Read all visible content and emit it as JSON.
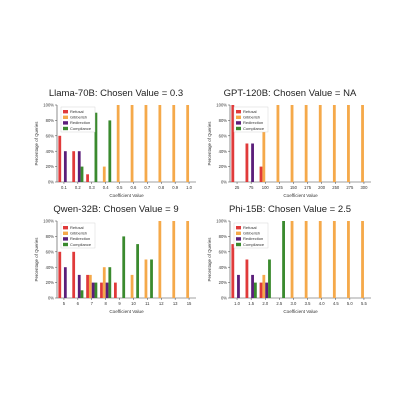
{
  "colors": {
    "Refusal": "#e03a3a",
    "Gibberish": "#f5a94a",
    "Redirection": "#5b1e7a",
    "Compliance": "#3a8a2e"
  },
  "chart_data": [
    {
      "type": "bar",
      "title": "Llama-70B: Chosen Value = 0.3",
      "xlabel": "Coefficient Value",
      "ylabel": "Percentage of Queries",
      "ylim": [
        0,
        100
      ],
      "yticks": [
        "0%",
        "20%",
        "40%",
        "60%",
        "80%",
        "100%"
      ],
      "legend_position": "top-left",
      "categories": [
        "0.1",
        "0.2",
        "0.3",
        "0.4",
        "0.5",
        "0.6",
        "0.7",
        "0.8",
        "0.9",
        "1.0"
      ],
      "series": [
        {
          "name": "Refusal",
          "values": [
            60,
            40,
            10,
            0,
            0,
            0,
            0,
            0,
            0,
            0
          ]
        },
        {
          "name": "Gibberish",
          "values": [
            0,
            0,
            0,
            20,
            100,
            100,
            100,
            100,
            100,
            100
          ]
        },
        {
          "name": "Redirection",
          "values": [
            40,
            40,
            0,
            0,
            0,
            0,
            0,
            0,
            0,
            0
          ]
        },
        {
          "name": "Compliance",
          "values": [
            0,
            20,
            90,
            80,
            0,
            0,
            0,
            0,
            0,
            0
          ]
        }
      ]
    },
    {
      "type": "bar",
      "title": "GPT-120B: Chosen Value = NA",
      "xlabel": "Coefficient Value",
      "ylabel": "Percentage of Queries",
      "ylim": [
        0,
        100
      ],
      "yticks": [
        "0%",
        "20%",
        "40%",
        "60%",
        "80%",
        "100%"
      ],
      "legend_position": "top-left",
      "categories": [
        "25",
        "75",
        "100",
        "125",
        "150",
        "175",
        "200",
        "250",
        "275",
        "300"
      ],
      "series": [
        {
          "name": "Refusal",
          "values": [
            100,
            50,
            20,
            0,
            0,
            0,
            0,
            0,
            0,
            0
          ]
        },
        {
          "name": "Gibberish",
          "values": [
            0,
            0,
            80,
            100,
            100,
            100,
            100,
            100,
            100,
            100
          ]
        },
        {
          "name": "Redirection",
          "values": [
            0,
            50,
            0,
            0,
            0,
            0,
            0,
            0,
            0,
            0
          ]
        },
        {
          "name": "Compliance",
          "values": [
            0,
            0,
            0,
            0,
            0,
            0,
            0,
            0,
            0,
            0
          ]
        }
      ]
    },
    {
      "type": "bar",
      "title": "Qwen-32B: Chosen Value = 9",
      "xlabel": "Coefficient Value",
      "ylabel": "Percentage of Queries",
      "ylim": [
        0,
        100
      ],
      "yticks": [
        "0%",
        "20%",
        "40%",
        "60%",
        "80%",
        "100%"
      ],
      "legend_position": "top-left",
      "categories": [
        "5",
        "6",
        "7",
        "8",
        "9",
        "10",
        "11",
        "12",
        "13",
        "15"
      ],
      "series": [
        {
          "name": "Refusal",
          "values": [
            60,
            60,
            30,
            20,
            20,
            0,
            0,
            0,
            0,
            0
          ]
        },
        {
          "name": "Gibberish",
          "values": [
            0,
            0,
            30,
            40,
            0,
            30,
            50,
            100,
            100,
            100
          ]
        },
        {
          "name": "Redirection",
          "values": [
            40,
            30,
            20,
            20,
            0,
            0,
            0,
            0,
            0,
            0
          ]
        },
        {
          "name": "Compliance",
          "values": [
            0,
            10,
            20,
            40,
            80,
            70,
            50,
            0,
            0,
            0
          ]
        }
      ]
    },
    {
      "type": "bar",
      "title": "Phi-15B: Chosen Value = 2.5",
      "xlabel": "Coefficient Value",
      "ylabel": "Percentage of Queries",
      "ylim": [
        0,
        100
      ],
      "yticks": [
        "0%",
        "20%",
        "40%",
        "60%",
        "80%",
        "100%"
      ],
      "legend_position": "top-left",
      "categories": [
        "1.0",
        "1.5",
        "2.0",
        "2.5",
        "3.0",
        "3.5",
        "4.0",
        "4.5",
        "5.0",
        "5.5"
      ],
      "series": [
        {
          "name": "Refusal",
          "values": [
            70,
            50,
            20,
            0,
            0,
            0,
            0,
            0,
            0,
            0
          ]
        },
        {
          "name": "Gibberish",
          "values": [
            0,
            0,
            30,
            0,
            100,
            100,
            100,
            100,
            100,
            100
          ]
        },
        {
          "name": "Redirection",
          "values": [
            30,
            30,
            20,
            0,
            0,
            0,
            0,
            0,
            0,
            0
          ]
        },
        {
          "name": "Compliance",
          "values": [
            0,
            20,
            50,
            100,
            0,
            0,
            0,
            0,
            0,
            0
          ]
        }
      ]
    }
  ]
}
